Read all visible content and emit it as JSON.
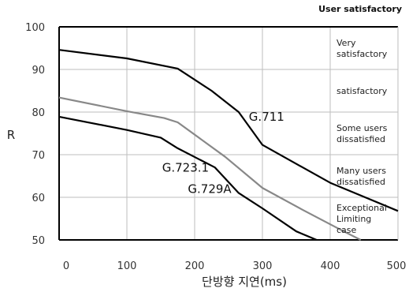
{
  "chart_data": {
    "type": "line",
    "title": "",
    "xlabel": "단방향 지연(ms)",
    "ylabel": "R",
    "xlim": [
      0,
      500
    ],
    "ylim": [
      50,
      100
    ],
    "x_ticks": [
      "0",
      "100",
      "200",
      "300",
      "400",
      "500"
    ],
    "y_ticks": [
      "50",
      "60",
      "70",
      "80",
      "90",
      "100"
    ],
    "grid": true,
    "bands_header": "User satisfactory",
    "bands": [
      {
        "label": "Very satisfactory",
        "lines": [
          "Very",
          "satisfactory"
        ],
        "y_from": 90,
        "y_to": 100
      },
      {
        "label": "satisfactory",
        "lines": [
          "satisfactory"
        ],
        "y_from": 80,
        "y_to": 90
      },
      {
        "label": "Some users dissatisfied",
        "lines": [
          "Some users",
          "dissatisfied"
        ],
        "y_from": 70,
        "y_to": 80
      },
      {
        "label": "Many users dissatisfied",
        "lines": [
          "Many users",
          "dissatisfied"
        ],
        "y_from": 60,
        "y_to": 70
      },
      {
        "label": "Exceptional Limiting case",
        "lines": [
          "Exceptional",
          "Limiting",
          "case"
        ],
        "y_from": 50,
        "y_to": 60
      }
    ],
    "series": [
      {
        "name": "G.711",
        "color": "#000000",
        "points": [
          [
            0,
            94.6
          ],
          [
            100,
            92.6
          ],
          [
            175,
            90.2
          ],
          [
            225,
            85
          ],
          [
            265,
            80
          ],
          [
            300,
            72.3
          ],
          [
            400,
            63.4
          ],
          [
            500,
            56.8
          ]
        ]
      },
      {
        "name": "G.729A",
        "color": "#888888",
        "points": [
          [
            0,
            83.4
          ],
          [
            100,
            80.2
          ],
          [
            155,
            78.6
          ],
          [
            175,
            77.6
          ],
          [
            245,
            69.5
          ],
          [
            300,
            62.2
          ],
          [
            360,
            57
          ],
          [
            420,
            52
          ],
          [
            445,
            50
          ]
        ]
      },
      {
        "name": "G.723.1",
        "color": "#000000",
        "points": [
          [
            0,
            78.9
          ],
          [
            100,
            75.8
          ],
          [
            150,
            74
          ],
          [
            175,
            71.5
          ],
          [
            230,
            67
          ],
          [
            265,
            61
          ],
          [
            300,
            57.4
          ],
          [
            350,
            52
          ],
          [
            380,
            50
          ]
        ]
      }
    ]
  }
}
